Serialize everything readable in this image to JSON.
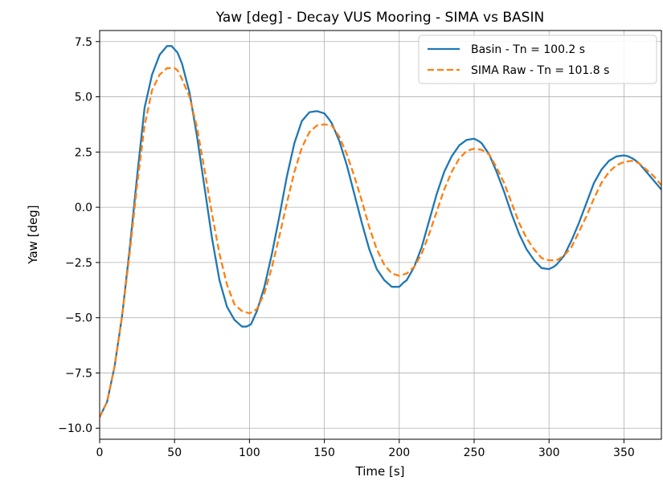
{
  "chart_data": {
    "type": "line",
    "title": "Yaw [deg] - Decay VUS Mooring - SIMA vs BASIN",
    "xlabel": "Time [s]",
    "ylabel": "Yaw [deg]",
    "xlim": [
      0,
      375
    ],
    "ylim": [
      -10.5,
      8.0
    ],
    "xticks": [
      0,
      50,
      100,
      150,
      200,
      250,
      300,
      350
    ],
    "yticks": [
      -10.0,
      -7.5,
      -5.0,
      -2.5,
      0.0,
      2.5,
      5.0,
      7.5
    ],
    "xtick_labels": [
      "0",
      "50",
      "100",
      "150",
      "200",
      "250",
      "300",
      "350"
    ],
    "ytick_labels": [
      "−10.0",
      "−7.5",
      "−5.0",
      "−2.5",
      "0.0",
      "2.5",
      "5.0",
      "7.5"
    ],
    "grid": true,
    "legend": "top-right",
    "series": [
      {
        "name": "Basin - Tn = 100.2 s",
        "color": "#1f77b4",
        "style": "solid",
        "x": [
          0,
          5,
          10,
          15,
          20,
          25,
          30,
          35,
          40,
          45,
          48,
          52,
          55,
          60,
          65,
          70,
          75,
          80,
          85,
          90,
          95,
          98,
          101,
          105,
          110,
          115,
          120,
          125,
          130,
          135,
          140,
          145,
          150,
          153,
          155,
          160,
          165,
          170,
          175,
          180,
          185,
          190,
          195,
          200,
          203,
          205,
          210,
          215,
          220,
          225,
          230,
          235,
          240,
          245,
          250,
          253,
          255,
          260,
          265,
          270,
          275,
          280,
          285,
          290,
          295,
          300,
          303,
          305,
          310,
          315,
          320,
          325,
          330,
          335,
          340,
          345,
          350,
          353,
          356,
          360,
          365,
          370,
          375
        ],
        "values": [
          -9.5,
          -8.8,
          -7.2,
          -4.9,
          -1.9,
          1.4,
          4.5,
          6.0,
          6.9,
          7.3,
          7.3,
          7.0,
          6.5,
          5.2,
          3.2,
          0.9,
          -1.4,
          -3.3,
          -4.5,
          -5.1,
          -5.4,
          -5.4,
          -5.3,
          -4.7,
          -3.6,
          -2.1,
          -0.4,
          1.4,
          2.9,
          3.9,
          4.3,
          4.35,
          4.25,
          4.0,
          3.8,
          3.0,
          1.9,
          0.6,
          -0.7,
          -1.9,
          -2.8,
          -3.3,
          -3.6,
          -3.6,
          -3.4,
          -3.3,
          -2.7,
          -1.8,
          -0.6,
          0.6,
          1.6,
          2.3,
          2.8,
          3.05,
          3.1,
          3.0,
          2.9,
          2.4,
          1.6,
          0.7,
          -0.3,
          -1.2,
          -1.9,
          -2.4,
          -2.75,
          -2.8,
          -2.7,
          -2.6,
          -2.2,
          -1.5,
          -0.7,
          0.2,
          1.1,
          1.7,
          2.1,
          2.3,
          2.35,
          2.3,
          2.2,
          2.0,
          1.6,
          1.2,
          0.8
        ]
      },
      {
        "name": "SIMA Raw - Tn = 101.8 s",
        "color": "#ff7f0e",
        "style": "dashed",
        "x": [
          0,
          5,
          10,
          15,
          20,
          25,
          30,
          35,
          40,
          45,
          50,
          52,
          55,
          60,
          65,
          70,
          75,
          80,
          85,
          90,
          95,
          100,
          103,
          105,
          110,
          115,
          120,
          125,
          130,
          135,
          140,
          145,
          150,
          155,
          160,
          165,
          170,
          175,
          180,
          185,
          190,
          195,
          200,
          205,
          210,
          215,
          220,
          225,
          230,
          235,
          240,
          245,
          250,
          255,
          260,
          265,
          270,
          275,
          280,
          285,
          290,
          295,
          300,
          305,
          310,
          315,
          320,
          325,
          330,
          335,
          340,
          345,
          350,
          355,
          360,
          365,
          370,
          375
        ],
        "values": [
          -9.5,
          -8.8,
          -7.2,
          -4.9,
          -2.1,
          1.0,
          3.7,
          5.3,
          6.0,
          6.3,
          6.3,
          6.2,
          5.8,
          5.0,
          3.6,
          1.7,
          -0.3,
          -2.1,
          -3.5,
          -4.4,
          -4.7,
          -4.8,
          -4.7,
          -4.6,
          -3.9,
          -2.7,
          -1.3,
          0.2,
          1.6,
          2.7,
          3.4,
          3.7,
          3.75,
          3.7,
          3.2,
          2.4,
          1.4,
          0.3,
          -0.9,
          -1.9,
          -2.6,
          -3.0,
          -3.1,
          -3.0,
          -2.7,
          -2.1,
          -1.2,
          -0.2,
          0.8,
          1.6,
          2.2,
          2.55,
          2.65,
          2.6,
          2.4,
          1.8,
          1.1,
          0.2,
          -0.7,
          -1.4,
          -1.9,
          -2.3,
          -2.4,
          -2.4,
          -2.2,
          -1.8,
          -1.1,
          -0.4,
          0.4,
          1.1,
          1.6,
          1.9,
          2.05,
          2.1,
          2.0,
          1.7,
          1.4,
          1.0
        ]
      }
    ]
  }
}
